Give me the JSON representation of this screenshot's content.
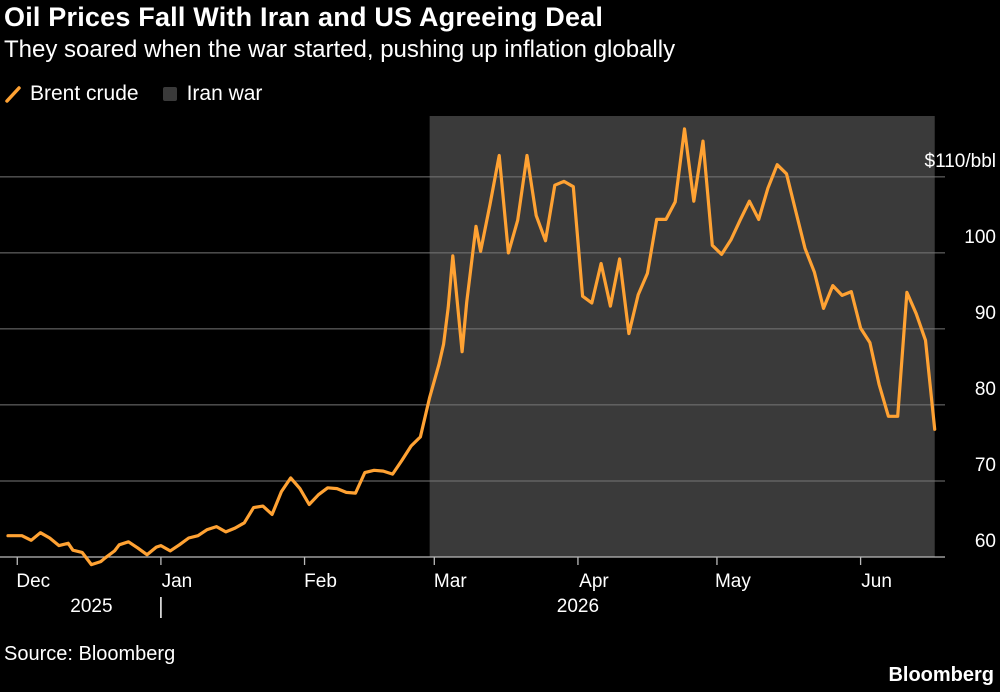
{
  "title": "Oil Prices Fall With Iran and US Agreeing Deal",
  "subtitle": "They soared when the war started, pushing up inflation globally",
  "source": "Source: Bloomberg",
  "brand": "Bloomberg",
  "colors": {
    "line": "#ffa233",
    "shade": "#3a3a3a",
    "grid": "#777777",
    "text": "#ffffff",
    "background": "#000000"
  },
  "chart_data": {
    "type": "line",
    "title": "Oil Prices Fall With Iran and US Agreeing Deal",
    "subtitle": "They soared when the war started, pushing up inflation globally",
    "legend": [
      {
        "label": "Brent crude",
        "kind": "line",
        "color": "#ffa233"
      },
      {
        "label": "Iran war",
        "kind": "shaded-area",
        "color": "#3a3a3a"
      }
    ],
    "legend_position": "top-left",
    "y_axis": {
      "side": "right",
      "ylim": [
        60,
        118
      ],
      "ticks": [
        60,
        70,
        80,
        90,
        100,
        110
      ],
      "tick_labels": [
        "60",
        "70",
        "80",
        "90",
        "100",
        "$110/bbl"
      ],
      "grid": true
    },
    "x_axis": {
      "range": [
        "2025-11-29",
        "2026-06-19"
      ],
      "ticks": [
        {
          "date": "2025-12-01",
          "label": "Dec"
        },
        {
          "date": "2026-01-01",
          "label": "Jan"
        },
        {
          "date": "2026-02-01",
          "label": "Feb"
        },
        {
          "date": "2026-03-01",
          "label": "Mar"
        },
        {
          "date": "2026-04-01",
          "label": "Apr"
        },
        {
          "date": "2026-05-01",
          "label": "May"
        },
        {
          "date": "2026-06-01",
          "label": "Jun"
        }
      ],
      "year_labels": [
        {
          "date": "2025-12-17",
          "label": "2025"
        },
        {
          "date": "2026-04-01",
          "label": "2026"
        }
      ],
      "year_separator_date": "2026-01-01"
    },
    "shaded_range": {
      "label": "Iran war",
      "start": "2026-02-28",
      "end": "2026-06-17"
    },
    "series": [
      {
        "name": "Brent crude",
        "x": [
          "2025-11-29",
          "2025-12-02",
          "2025-12-04",
          "2025-12-06",
          "2025-12-08",
          "2025-12-10",
          "2025-12-12",
          "2025-12-13",
          "2025-12-15",
          "2025-12-17",
          "2025-12-19",
          "2025-12-20",
          "2025-12-22",
          "2025-12-23",
          "2025-12-25",
          "2025-12-27",
          "2025-12-29",
          "2025-12-31",
          "2026-01-01",
          "2026-01-03",
          "2026-01-05",
          "2026-01-07",
          "2026-01-09",
          "2026-01-11",
          "2026-01-13",
          "2026-01-15",
          "2026-01-17",
          "2026-01-19",
          "2026-01-21",
          "2026-01-23",
          "2026-01-25",
          "2026-01-27",
          "2026-01-29",
          "2026-01-31",
          "2026-02-02",
          "2026-02-04",
          "2026-02-06",
          "2026-02-08",
          "2026-02-10",
          "2026-02-12",
          "2026-02-14",
          "2026-02-16",
          "2026-02-18",
          "2026-02-20",
          "2026-02-22",
          "2026-02-24",
          "2026-02-26",
          "2026-02-28",
          "2026-03-02",
          "2026-03-03",
          "2026-03-04",
          "2026-03-05",
          "2026-03-07",
          "2026-03-08",
          "2026-03-10",
          "2026-03-11",
          "2026-03-13",
          "2026-03-15",
          "2026-03-17",
          "2026-03-19",
          "2026-03-21",
          "2026-03-23",
          "2026-03-25",
          "2026-03-27",
          "2026-03-29",
          "2026-03-31",
          "2026-04-02",
          "2026-04-04",
          "2026-04-06",
          "2026-04-08",
          "2026-04-10",
          "2026-04-12",
          "2026-04-14",
          "2026-04-16",
          "2026-04-18",
          "2026-04-20",
          "2026-04-22",
          "2026-04-24",
          "2026-04-26",
          "2026-04-28",
          "2026-04-30",
          "2026-05-02",
          "2026-05-04",
          "2026-05-06",
          "2026-05-08",
          "2026-05-10",
          "2026-05-12",
          "2026-05-14",
          "2026-05-16",
          "2026-05-18",
          "2026-05-20",
          "2026-05-22",
          "2026-05-24",
          "2026-05-26",
          "2026-05-28",
          "2026-05-30",
          "2026-06-01",
          "2026-06-03",
          "2026-06-05",
          "2026-06-07",
          "2026-06-09",
          "2026-06-11",
          "2026-06-13",
          "2026-06-15",
          "2026-06-17"
        ],
        "y": [
          62.8,
          62.8,
          62.2,
          63.2,
          62.5,
          61.5,
          61.8,
          60.9,
          60.6,
          59.0,
          59.4,
          59.9,
          60.8,
          61.6,
          62.0,
          61.2,
          60.3,
          61.3,
          61.5,
          60.8,
          61.6,
          62.5,
          62.8,
          63.6,
          64.0,
          63.3,
          63.8,
          64.5,
          66.5,
          66.7,
          65.6,
          68.6,
          70.4,
          69.0,
          66.9,
          68.2,
          69.1,
          69.0,
          68.5,
          68.4,
          71.1,
          71.4,
          71.3,
          70.9,
          72.7,
          74.6,
          75.8,
          81.0,
          85.3,
          88.0,
          92.8,
          99.6,
          87.0,
          93.5,
          103.5,
          100.2,
          106.3,
          112.8,
          100.0,
          104.3,
          112.8,
          104.9,
          101.6,
          108.9,
          109.4,
          108.7,
          94.3,
          93.4,
          98.6,
          93.0,
          99.2,
          89.4,
          94.5,
          97.3,
          104.4,
          104.4,
          106.7,
          116.3,
          106.8,
          114.7,
          101.0,
          99.8,
          101.7,
          104.3,
          106.8,
          104.4,
          108.5,
          111.6,
          110.4,
          105.5,
          100.6,
          97.5,
          92.7,
          95.7,
          94.4,
          94.9,
          90.1,
          88.2,
          82.7,
          78.5,
          78.5,
          94.8,
          92.0,
          88.5,
          76.8
        ]
      }
    ]
  }
}
